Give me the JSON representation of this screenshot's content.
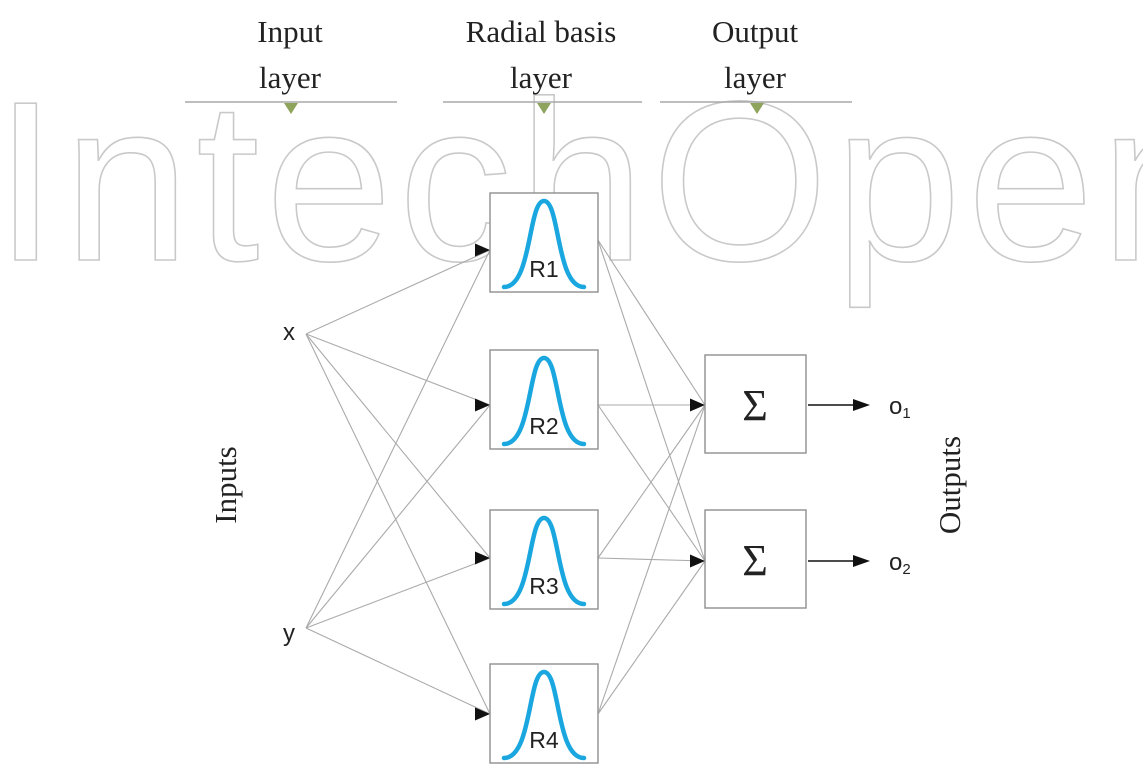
{
  "diagram": {
    "watermark": "IntechOpen",
    "layers": [
      {
        "id": "input",
        "label_lines": [
          "Input",
          "layer"
        ]
      },
      {
        "id": "radial",
        "label_lines": [
          "Radial basis",
          "layer"
        ]
      },
      {
        "id": "output",
        "label_lines": [
          "Output",
          "layer"
        ]
      }
    ],
    "side_labels": {
      "inputs": "Inputs",
      "outputs": "Outputs"
    },
    "input_nodes": [
      {
        "id": "x",
        "label": "x"
      },
      {
        "id": "y",
        "label": "y"
      }
    ],
    "rbf_nodes": [
      {
        "id": "R1",
        "label": "R1"
      },
      {
        "id": "R2",
        "label": "R2"
      },
      {
        "id": "R3",
        "label": "R3"
      },
      {
        "id": "R4",
        "label": "R4"
      }
    ],
    "sum_nodes": [
      {
        "id": "S1",
        "label": "Σ"
      },
      {
        "id": "S2",
        "label": "Σ"
      }
    ],
    "outputs": [
      {
        "id": "o1",
        "symbol": "o",
        "subscript": "1"
      },
      {
        "id": "o2",
        "symbol": "o",
        "subscript": "2"
      }
    ],
    "edges_input_to_rbf": [
      [
        "x",
        "R1"
      ],
      [
        "x",
        "R2"
      ],
      [
        "x",
        "R3"
      ],
      [
        "x",
        "R4"
      ],
      [
        "y",
        "R1"
      ],
      [
        "y",
        "R2"
      ],
      [
        "y",
        "R3"
      ],
      [
        "y",
        "R4"
      ]
    ],
    "edges_rbf_to_sum": [
      [
        "R1",
        "S1"
      ],
      [
        "R1",
        "S2"
      ],
      [
        "R2",
        "S1"
      ],
      [
        "R2",
        "S2"
      ],
      [
        "R3",
        "S1"
      ],
      [
        "R3",
        "S2"
      ],
      [
        "R4",
        "S1"
      ],
      [
        "R4",
        "S2"
      ]
    ],
    "colors": {
      "gaussian_curve": "#1aa7e0",
      "header_marker": "#8ea35c",
      "edge": "#aaaaaa",
      "box_border": "#8f8f8f",
      "watermark": "#c9c9c9"
    }
  }
}
